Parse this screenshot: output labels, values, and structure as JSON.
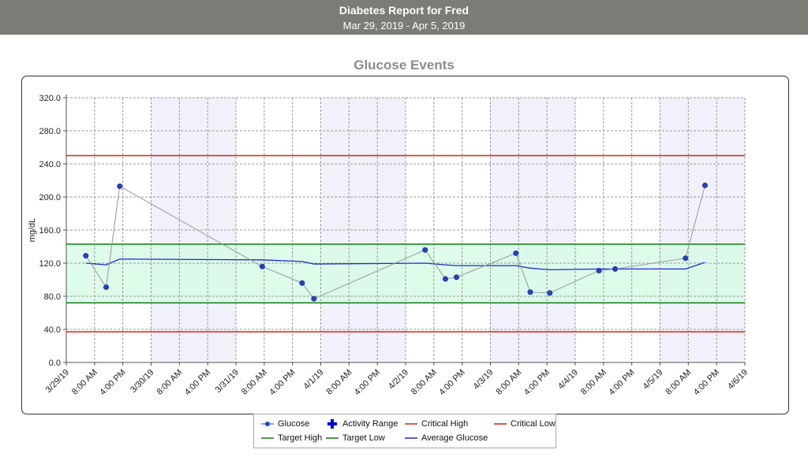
{
  "header": {
    "title": "Diabetes Report for Fred",
    "subtitle": "Mar 29, 2019 - Apr 5, 2019"
  },
  "colors": {
    "header_bg": "#7c7b76",
    "glucose_marker": "#2541c9",
    "glucose_line": "#999999",
    "activity": "#0000cc",
    "critical": "#dd2211",
    "target": "#117a11",
    "target_band": "#d7fbe6",
    "average": "#1f2ad6",
    "night_band": "#f1f1fb"
  },
  "chart_data": {
    "type": "line",
    "title": "Glucose Events",
    "ylabel": "mg/dL",
    "xlabel": "",
    "ylim": [
      0,
      320
    ],
    "yticks": [
      "0.0",
      "40.0",
      "80.0",
      "120.0",
      "160.0",
      "200.0",
      "240.0",
      "280.0",
      "320.0"
    ],
    "x_range_days": [
      0,
      8
    ],
    "xticks": [
      {
        "label": "3/29/19",
        "day": 0
      },
      {
        "label": "8:00 AM",
        "day": 0.3333
      },
      {
        "label": "4:00 PM",
        "day": 0.6667
      },
      {
        "label": "3/30/19",
        "day": 1
      },
      {
        "label": "8:00 AM",
        "day": 1.3333
      },
      {
        "label": "4:00 PM",
        "day": 1.6667
      },
      {
        "label": "3/31/19",
        "day": 2
      },
      {
        "label": "8:00 AM",
        "day": 2.3333
      },
      {
        "label": "4:00 PM",
        "day": 2.6667
      },
      {
        "label": "4/1/19",
        "day": 3
      },
      {
        "label": "8:00 AM",
        "day": 3.3333
      },
      {
        "label": "4:00 PM",
        "day": 3.6667
      },
      {
        "label": "4/2/19",
        "day": 4
      },
      {
        "label": "8:00 AM",
        "day": 4.3333
      },
      {
        "label": "4:00 PM",
        "day": 4.6667
      },
      {
        "label": "4/3/19",
        "day": 5
      },
      {
        "label": "8:00 AM",
        "day": 5.3333
      },
      {
        "label": "4:00 PM",
        "day": 5.6667
      },
      {
        "label": "4/4/19",
        "day": 6
      },
      {
        "label": "8:00 AM",
        "day": 6.3333
      },
      {
        "label": "4:00 PM",
        "day": 6.6667
      },
      {
        "label": "4/5/19",
        "day": 7
      },
      {
        "label": "8:00 AM",
        "day": 7.3333
      },
      {
        "label": "4:00 PM",
        "day": 7.6667
      },
      {
        "label": "4/6/19",
        "day": 8
      }
    ],
    "shaded_day_ranges": [
      [
        1,
        2
      ],
      [
        3,
        4
      ],
      [
        5,
        6
      ],
      [
        7,
        8
      ]
    ],
    "glucose": [
      {
        "day": 0.23,
        "value": 129
      },
      {
        "day": 0.47,
        "value": 91
      },
      {
        "day": 0.63,
        "value": 213
      },
      {
        "day": 2.31,
        "value": 116
      },
      {
        "day": 2.78,
        "value": 96
      },
      {
        "day": 2.92,
        "value": 77
      },
      {
        "day": 4.23,
        "value": 136
      },
      {
        "day": 4.47,
        "value": 101
      },
      {
        "day": 4.6,
        "value": 103
      },
      {
        "day": 5.3,
        "value": 132
      },
      {
        "day": 5.47,
        "value": 85
      },
      {
        "day": 5.7,
        "value": 84
      },
      {
        "day": 6.28,
        "value": 111
      },
      {
        "day": 6.47,
        "value": 113
      },
      {
        "day": 7.3,
        "value": 126
      },
      {
        "day": 7.53,
        "value": 214
      }
    ],
    "average_glucose": [
      {
        "day": 0.23,
        "value": 120
      },
      {
        "day": 0.47,
        "value": 118
      },
      {
        "day": 0.63,
        "value": 125
      },
      {
        "day": 2.31,
        "value": 124
      },
      {
        "day": 2.78,
        "value": 122
      },
      {
        "day": 2.92,
        "value": 119
      },
      {
        "day": 4.23,
        "value": 120
      },
      {
        "day": 4.47,
        "value": 118
      },
      {
        "day": 4.6,
        "value": 117
      },
      {
        "day": 5.3,
        "value": 117
      },
      {
        "day": 5.47,
        "value": 114
      },
      {
        "day": 5.7,
        "value": 112
      },
      {
        "day": 6.28,
        "value": 113
      },
      {
        "day": 6.47,
        "value": 113
      },
      {
        "day": 7.3,
        "value": 113
      },
      {
        "day": 7.53,
        "value": 121
      }
    ],
    "critical_high": 250,
    "critical_low": 37,
    "target_high": 143,
    "target_low": 72,
    "grid": true,
    "legend_position": "bottom",
    "legend": [
      {
        "name": "Glucose",
        "kind": "marker-line",
        "color": "#2541c9"
      },
      {
        "name": "Activity Range",
        "kind": "cross",
        "color": "#0000cc"
      },
      {
        "name": "Critical High",
        "kind": "line",
        "color": "#dd2211"
      },
      {
        "name": "Critical Low",
        "kind": "line",
        "color": "#dd2211"
      },
      {
        "name": "Target High",
        "kind": "line",
        "color": "#117a11"
      },
      {
        "name": "Target Low",
        "kind": "line",
        "color": "#117a11"
      },
      {
        "name": "Average Glucose",
        "kind": "line",
        "color": "#1f2ad6"
      }
    ]
  }
}
